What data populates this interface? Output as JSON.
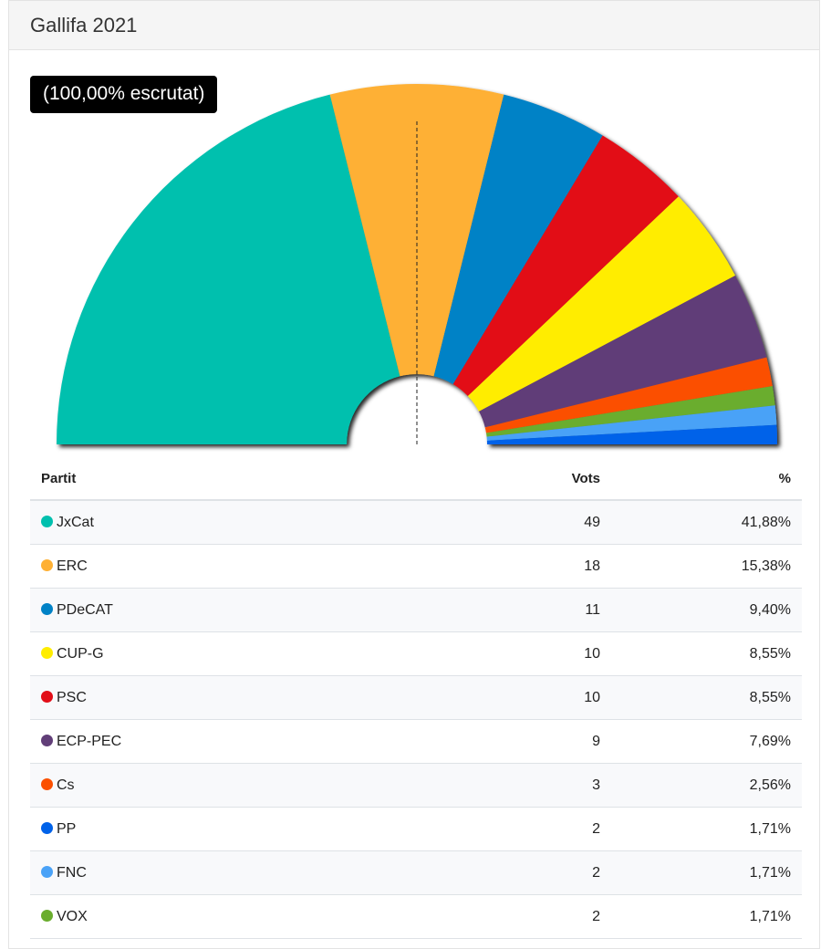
{
  "panel": {
    "title": "Gallifa 2021"
  },
  "badge": {
    "counted": "(100,00% escrutat)"
  },
  "table": {
    "headers": {
      "party": "Partit",
      "votes": "Vots",
      "percent": "%"
    }
  },
  "chart_data": {
    "type": "pie",
    "shape": "semicircle-parliament",
    "direction": "clockwise from left",
    "majority_line": "dashed vertical at centre",
    "slices_order": [
      "JxCat",
      "ERC",
      "PDeCAT",
      "PSC",
      "CUP-G",
      "ECP-PEC",
      "Cs",
      "VOX",
      "FNC",
      "PP"
    ],
    "parties": [
      {
        "name": "JxCat",
        "votes": 49,
        "percent": "41,88%",
        "color": "#00c0ae"
      },
      {
        "name": "ERC",
        "votes": 18,
        "percent": "15,38%",
        "color": "#feb034"
      },
      {
        "name": "PDeCAT",
        "votes": 11,
        "percent": "9,40%",
        "color": "#0082c6"
      },
      {
        "name": "CUP-G",
        "votes": 10,
        "percent": "8,55%",
        "color": "#ffed00"
      },
      {
        "name": "PSC",
        "votes": 10,
        "percent": "8,55%",
        "color": "#e20e18"
      },
      {
        "name": "ECP-PEC",
        "votes": 9,
        "percent": "7,69%",
        "color": "#613e78"
      },
      {
        "name": "Cs",
        "votes": 3,
        "percent": "2,56%",
        "color": "#fb5000"
      },
      {
        "name": "PP",
        "votes": 2,
        "percent": "1,71%",
        "color": "#0062e9"
      },
      {
        "name": "FNC",
        "votes": 2,
        "percent": "1,71%",
        "color": "#4aa2f7"
      },
      {
        "name": "VOX",
        "votes": 2,
        "percent": "1,71%",
        "color": "#6aad2d"
      }
    ]
  }
}
